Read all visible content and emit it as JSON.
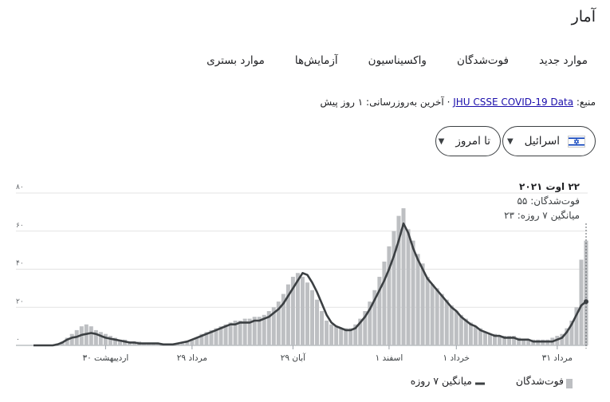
{
  "header": {
    "title": "آمار"
  },
  "tabs": [
    {
      "label": "موارد جدید"
    },
    {
      "label": "فوت‌شدگان"
    },
    {
      "label": "واکسیناسیون"
    },
    {
      "label": "آزمایش‌ها"
    },
    {
      "label": "موارد بستری"
    }
  ],
  "source": {
    "prefix": "منبع:",
    "link": "JHU CSSE COVID-19 Data",
    "updated": "· آخرین به‌روزرسانی: ۱ روز پیش"
  },
  "filters": {
    "country": "اسرائیل",
    "range": "تا امروز"
  },
  "colors": {
    "bars": "#bdbfc2",
    "line": "#3c4043",
    "link": "#1a0dab",
    "flag_blue": "#0038b8"
  },
  "tooltip": {
    "date": "۲۲ اوت ۲۰۲۱",
    "deaths": "فوت‌شدگان: ۵۵",
    "avg": "میانگین ۷ روزه: ۲۳"
  },
  "legend": {
    "deaths": "فوت‌شدگان",
    "avg": "میانگین ۷ روزه"
  },
  "chart_data": {
    "type": "bar",
    "ylim": [
      0,
      80
    ],
    "y_ticks": [
      0,
      20,
      40,
      60,
      80
    ],
    "y_tick_labels": [
      "۰",
      "۲۰",
      "۴۰",
      "۶۰",
      "۸۰"
    ],
    "x_tick_labels": [
      "اردیبهشت ۳۰",
      "مرداد ۲۹",
      "آبان ۲۹",
      "اسفند ۱",
      "خرداد ۱",
      "مرداد ۳۱"
    ],
    "x_tick_positions": [
      15,
      33,
      54,
      74,
      88,
      109
    ],
    "series": [
      {
        "name": "فوت‌شدگان",
        "values": [
          0,
          0,
          0,
          0,
          0,
          1,
          2,
          4,
          6,
          8,
          10,
          11,
          10,
          8,
          7,
          6,
          5,
          4,
          3,
          3,
          2,
          2,
          2,
          1,
          1,
          1,
          1,
          1,
          0,
          1,
          1,
          1,
          2,
          3,
          4,
          6,
          7,
          8,
          9,
          10,
          11,
          12,
          13,
          13,
          14,
          14,
          15,
          15,
          16,
          18,
          20,
          23,
          27,
          32,
          36,
          38,
          36,
          33,
          29,
          24,
          18,
          13,
          11,
          10,
          9,
          9,
          9,
          11,
          14,
          18,
          23,
          29,
          36,
          44,
          52,
          60,
          68,
          72,
          61,
          55,
          48,
          43,
          36,
          32,
          30,
          27,
          24,
          21,
          18,
          16,
          14,
          12,
          10,
          9,
          7,
          6,
          6,
          5,
          5,
          5,
          5,
          4,
          3,
          3,
          3,
          3,
          3,
          3,
          4,
          5,
          6,
          9,
          13,
          20,
          45,
          55
        ]
      },
      {
        "name": "میانگین ۷ روزه",
        "values": [
          0,
          0,
          0,
          0,
          0,
          0.5,
          1.5,
          3,
          4,
          4.5,
          5.5,
          6,
          6.5,
          6,
          5,
          4,
          3.5,
          3,
          2.5,
          2,
          1.5,
          1.5,
          1,
          1,
          1,
          1,
          1,
          0.5,
          0.5,
          0.5,
          1,
          1.5,
          2,
          3,
          4,
          5,
          6,
          7,
          8,
          9,
          10,
          11,
          11,
          12,
          12,
          12,
          13,
          13,
          14,
          15,
          17,
          19,
          22,
          26,
          30,
          34,
          38,
          37,
          33,
          28,
          22,
          16,
          12,
          10,
          9,
          8,
          8,
          9,
          12,
          15,
          19,
          24,
          29,
          34,
          40,
          47,
          55,
          64,
          59,
          51,
          45,
          40,
          35,
          32,
          29,
          26,
          23,
          20,
          18,
          15,
          13,
          11,
          10,
          8,
          7,
          6,
          5,
          5,
          4,
          4,
          4,
          3,
          3,
          3,
          2,
          2,
          2,
          2,
          2,
          3,
          4,
          7,
          11,
          16,
          21,
          23
        ]
      }
    ]
  }
}
